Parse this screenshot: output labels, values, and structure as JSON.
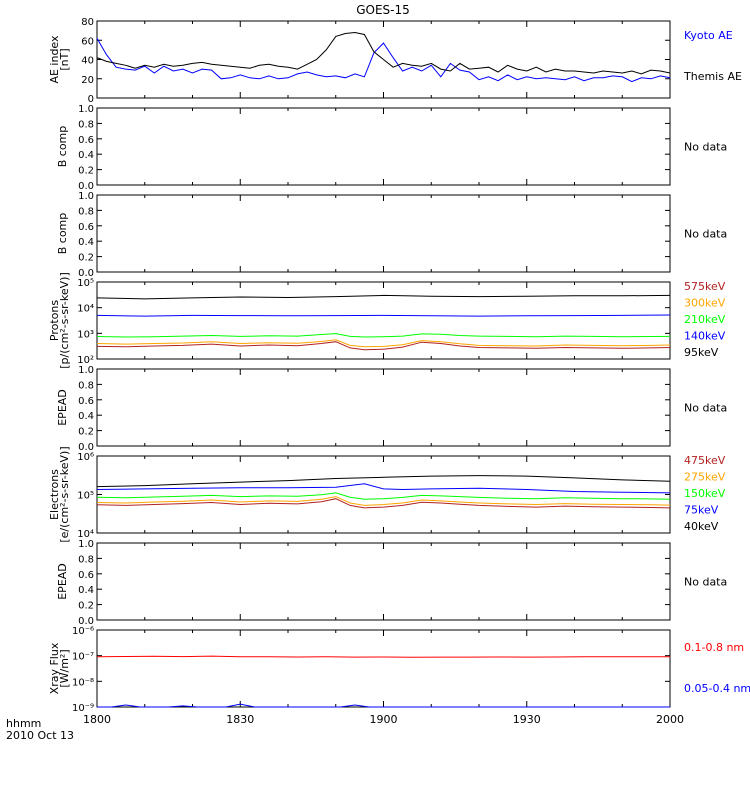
{
  "title": "GOES-15",
  "time_axis": {
    "ticks": [
      "1800",
      "1830",
      "1900",
      "1930",
      "2000"
    ],
    "corner_label_1": "hhmm",
    "corner_label_2": "2010 Oct 13"
  },
  "colors": {
    "black": "#000000",
    "blue": "#0000ff",
    "green": "#00ff00",
    "orange": "#ffa500",
    "darkred": "#b22222",
    "red": "#ff0000"
  },
  "chart_data": [
    {
      "type": "line",
      "panel": "ae",
      "ylabel": [
        "AE index",
        "[nT]"
      ],
      "ylim": [
        0,
        80
      ],
      "yticks": [
        "0",
        "20",
        "40",
        "60",
        "80"
      ],
      "x_range_minutes": [
        0,
        120
      ],
      "legend": [
        {
          "label": "Kyoto AE",
          "color": "#0000ff"
        },
        {
          "label": "Themis AE",
          "color": "#000000"
        }
      ],
      "series": [
        {
          "name": "Kyoto AE",
          "color": "#0000ff",
          "x": [
            0,
            2,
            4,
            6,
            8,
            10,
            12,
            14,
            16,
            18,
            20,
            22,
            24,
            26,
            28,
            30,
            32,
            34,
            36,
            38,
            40,
            42,
            44,
            46,
            48,
            50,
            52,
            54,
            56,
            58,
            60,
            62,
            64,
            66,
            68,
            70,
            72,
            74,
            76,
            78,
            80,
            82,
            84,
            86,
            88,
            90,
            92,
            94,
            96,
            98,
            100,
            102,
            104,
            106,
            108,
            110,
            112,
            114,
            116,
            118,
            120
          ],
          "y": [
            62,
            45,
            32,
            30,
            29,
            33,
            26,
            33,
            28,
            30,
            26,
            30,
            29,
            20,
            21,
            24,
            21,
            20,
            23,
            20,
            21,
            25,
            27,
            24,
            22,
            23,
            21,
            25,
            22,
            47,
            57,
            42,
            28,
            32,
            28,
            34,
            22,
            36,
            29,
            27,
            19,
            22,
            18,
            24,
            19,
            22,
            20,
            21,
            20,
            19,
            22,
            18,
            21,
            21,
            23,
            22,
            17,
            21,
            20,
            23,
            21
          ]
        },
        {
          "name": "Themis AE",
          "color": "#000000",
          "x": [
            0,
            2,
            4,
            6,
            8,
            10,
            12,
            14,
            16,
            18,
            20,
            22,
            24,
            26,
            28,
            30,
            32,
            34,
            36,
            38,
            40,
            42,
            44,
            46,
            48,
            50,
            52,
            54,
            56,
            58,
            60,
            62,
            64,
            66,
            68,
            70,
            72,
            74,
            76,
            78,
            80,
            82,
            84,
            86,
            88,
            90,
            92,
            94,
            96,
            98,
            100,
            102,
            104,
            106,
            108,
            110,
            112,
            114,
            116,
            118,
            120
          ],
          "y": [
            42,
            38,
            36,
            34,
            31,
            34,
            32,
            35,
            33,
            34,
            36,
            37,
            35,
            34,
            33,
            32,
            31,
            34,
            35,
            33,
            32,
            30,
            35,
            40,
            50,
            64,
            67,
            68,
            66,
            48,
            40,
            32,
            36,
            34,
            33,
            36,
            30,
            28,
            36,
            30,
            31,
            32,
            27,
            34,
            30,
            28,
            32,
            27,
            30,
            28,
            28,
            27,
            26,
            28,
            27,
            26,
            28,
            25,
            29,
            28,
            26
          ]
        }
      ]
    },
    {
      "type": "line",
      "panel": "bcomp1",
      "ylabel": [
        "B comp"
      ],
      "ylim": [
        0,
        1
      ],
      "yticks": [
        "0.0",
        "0.2",
        "0.4",
        "0.6",
        "0.8",
        "1.0"
      ],
      "status": "No data",
      "series": []
    },
    {
      "type": "line",
      "panel": "bcomp2",
      "ylabel": [
        "B comp"
      ],
      "ylim": [
        0,
        1
      ],
      "yticks": [
        "0.0",
        "0.2",
        "0.4",
        "0.6",
        "0.8",
        "1.0"
      ],
      "status": "No data",
      "series": []
    },
    {
      "type": "line",
      "panel": "protons",
      "ylabel": [
        "Protons",
        "[p/(cm²-s-sr-keV)]"
      ],
      "scale": "log",
      "ylim": [
        100,
        100000
      ],
      "yticks": [
        "10²",
        "10³",
        "10⁴",
        "10⁵"
      ],
      "x_range_minutes": [
        0,
        120
      ],
      "legend": [
        {
          "label": "575keV",
          "color": "#b22222"
        },
        {
          "label": "300keV",
          "color": "#ffa500"
        },
        {
          "label": "210keV",
          "color": "#00ff00"
        },
        {
          "label": "140keV",
          "color": "#0000ff"
        },
        {
          "label": "95keV",
          "color": "#000000"
        }
      ],
      "series": [
        {
          "name": "95keV",
          "color": "#000000",
          "x": [
            0,
            10,
            20,
            30,
            40,
            50,
            60,
            70,
            80,
            90,
            100,
            110,
            120
          ],
          "y": [
            24000,
            22000,
            24000,
            26000,
            25000,
            27000,
            30000,
            28000,
            27000,
            28000,
            29000,
            29000,
            30000
          ]
        },
        {
          "name": "140keV",
          "color": "#0000ff",
          "x": [
            0,
            10,
            20,
            30,
            40,
            50,
            60,
            70,
            80,
            90,
            100,
            110,
            120
          ],
          "y": [
            5000,
            4700,
            5000,
            4900,
            4800,
            4900,
            5000,
            4800,
            4700,
            4800,
            4900,
            5000,
            5200
          ]
        },
        {
          "name": "210keV",
          "color": "#00ff00",
          "x": [
            0,
            6,
            12,
            18,
            24,
            30,
            36,
            42,
            47,
            50,
            53,
            56,
            60,
            64,
            68,
            72,
            76,
            80,
            86,
            92,
            98,
            104,
            110,
            116,
            120
          ],
          "y": [
            750,
            720,
            740,
            780,
            820,
            760,
            800,
            780,
            900,
            980,
            760,
            720,
            740,
            780,
            950,
            920,
            820,
            780,
            760,
            740,
            780,
            760,
            740,
            750,
            760
          ]
        },
        {
          "name": "300keV",
          "color": "#ffa500",
          "x": [
            0,
            6,
            12,
            18,
            24,
            30,
            36,
            42,
            47,
            50,
            53,
            56,
            60,
            64,
            68,
            72,
            76,
            80,
            86,
            92,
            98,
            104,
            110,
            116,
            120
          ],
          "y": [
            400,
            380,
            400,
            420,
            470,
            400,
            430,
            410,
            480,
            560,
            340,
            300,
            310,
            360,
            520,
            470,
            390,
            340,
            330,
            320,
            350,
            340,
            330,
            340,
            350
          ]
        },
        {
          "name": "575keV",
          "color": "#b22222",
          "x": [
            0,
            6,
            12,
            18,
            24,
            30,
            36,
            42,
            47,
            50,
            53,
            56,
            60,
            64,
            68,
            72,
            76,
            80,
            86,
            92,
            98,
            104,
            110,
            116,
            120
          ],
          "y": [
            310,
            300,
            320,
            340,
            380,
            320,
            350,
            330,
            400,
            470,
            270,
            230,
            240,
            290,
            450,
            400,
            320,
            280,
            270,
            260,
            280,
            270,
            260,
            270,
            280
          ]
        }
      ]
    },
    {
      "type": "line",
      "panel": "epead1",
      "ylabel": [
        "EPEAD"
      ],
      "ylim": [
        0,
        1
      ],
      "yticks": [
        "0.0",
        "0.2",
        "0.4",
        "0.6",
        "0.8",
        "1.0"
      ],
      "status": "No data",
      "series": []
    },
    {
      "type": "line",
      "panel": "electrons",
      "ylabel": [
        "Electrons",
        "[e/(cm²-s-sr-keV)]"
      ],
      "scale": "log",
      "ylim": [
        10000,
        1000000
      ],
      "yticks": [
        "10⁴",
        "10⁵",
        "10⁶"
      ],
      "x_range_minutes": [
        0,
        120
      ],
      "legend": [
        {
          "label": "475keV",
          "color": "#b22222"
        },
        {
          "label": "275keV",
          "color": "#ffa500"
        },
        {
          "label": "150keV",
          "color": "#00ff00"
        },
        {
          "label": "75keV",
          "color": "#0000ff"
        },
        {
          "label": "40keV",
          "color": "#000000"
        }
      ],
      "series": [
        {
          "name": "40keV",
          "color": "#000000",
          "x": [
            0,
            10,
            20,
            30,
            40,
            50,
            60,
            70,
            80,
            90,
            100,
            110,
            120
          ],
          "y": [
            160000,
            170000,
            190000,
            210000,
            230000,
            260000,
            280000,
            300000,
            310000,
            300000,
            270000,
            240000,
            220000
          ]
        },
        {
          "name": "75keV",
          "color": "#0000ff",
          "x": [
            0,
            10,
            20,
            30,
            40,
            50,
            56,
            60,
            64,
            70,
            80,
            90,
            100,
            110,
            120
          ],
          "y": [
            135000,
            140000,
            145000,
            150000,
            150000,
            155000,
            190000,
            140000,
            135000,
            140000,
            145000,
            135000,
            120000,
            115000,
            110000
          ]
        },
        {
          "name": "150keV",
          "color": "#00ff00",
          "x": [
            0,
            6,
            12,
            18,
            24,
            30,
            36,
            42,
            47,
            50,
            53,
            56,
            60,
            64,
            68,
            72,
            76,
            80,
            86,
            92,
            98,
            104,
            110,
            116,
            120
          ],
          "y": [
            85000,
            82000,
            86000,
            90000,
            95000,
            88000,
            92000,
            90000,
            98000,
            110000,
            85000,
            75000,
            78000,
            84000,
            95000,
            92000,
            88000,
            84000,
            80000,
            78000,
            82000,
            80000,
            78000,
            77000,
            75000
          ]
        },
        {
          "name": "275keV",
          "color": "#ffa500",
          "x": [
            0,
            6,
            12,
            18,
            24,
            30,
            36,
            42,
            47,
            50,
            53,
            56,
            60,
            64,
            68,
            72,
            76,
            80,
            86,
            92,
            98,
            104,
            110,
            116,
            120
          ],
          "y": [
            62000,
            60000,
            64000,
            67000,
            72000,
            64000,
            68000,
            66000,
            75000,
            88000,
            60000,
            52000,
            55000,
            60000,
            72000,
            68000,
            64000,
            60000,
            57000,
            55000,
            58000,
            56000,
            55000,
            54000,
            53000
          ]
        },
        {
          "name": "475keV",
          "color": "#b22222",
          "x": [
            0,
            6,
            12,
            18,
            24,
            30,
            36,
            42,
            47,
            50,
            53,
            56,
            60,
            64,
            68,
            72,
            76,
            80,
            86,
            92,
            98,
            104,
            110,
            116,
            120
          ],
          "y": [
            54000,
            52000,
            55000,
            58000,
            62000,
            55000,
            59000,
            57000,
            65000,
            78000,
            52000,
            45000,
            47000,
            52000,
            63000,
            60000,
            56000,
            52000,
            49000,
            47000,
            50000,
            48000,
            47000,
            46000,
            45000
          ]
        }
      ]
    },
    {
      "type": "line",
      "panel": "epead2",
      "ylabel": [
        "EPEAD"
      ],
      "ylim": [
        0,
        1
      ],
      "yticks": [
        "0.0",
        "0.2",
        "0.4",
        "0.6",
        "0.8",
        "1.0"
      ],
      "status": "No data",
      "series": []
    },
    {
      "type": "line",
      "panel": "xray",
      "ylabel": [
        "Xray Flux",
        "[W/m²]"
      ],
      "scale": "log",
      "ylim": [
        1e-09,
        1e-06
      ],
      "yticks": [
        "10⁻⁹",
        "10⁻⁸",
        "10⁻⁷",
        "10⁻⁶"
      ],
      "x_range_minutes": [
        0,
        120
      ],
      "legend": [
        {
          "label": "0.1-0.8 nm",
          "color": "#ff0000"
        },
        {
          "label": "0.05-0.4 nm",
          "color": "#0000ff"
        }
      ],
      "series": [
        {
          "name": "0.1-0.8 nm",
          "color": "#ff0000",
          "x": [
            0,
            6,
            12,
            18,
            24,
            30,
            36,
            42,
            48,
            54,
            60,
            66,
            72,
            78,
            84,
            90,
            96,
            102,
            108,
            114,
            120
          ],
          "y": [
            9e-08,
            9.3e-08,
            9.5e-08,
            9.2e-08,
            9.6e-08,
            9.1e-08,
            9e-08,
            8.9e-08,
            9e-08,
            8.8e-08,
            8.9e-08,
            8.7e-08,
            8.8e-08,
            8.8e-08,
            8.9e-08,
            8.8e-08,
            8.9e-08,
            9e-08,
            9e-08,
            9e-08,
            9.1e-08
          ]
        },
        {
          "name": "0.05-0.4 nm",
          "color": "#0000ff",
          "x": [
            0,
            3,
            6,
            9,
            12,
            15,
            18,
            21,
            24,
            27,
            30,
            33,
            36,
            39,
            42,
            45,
            48,
            51,
            54,
            57,
            60,
            63,
            66,
            69,
            72,
            75,
            78,
            81,
            84,
            87,
            90,
            93,
            96,
            99,
            102,
            105,
            108,
            111,
            114,
            117,
            120
          ],
          "y": [
            1e-09,
            1e-09,
            1.2e-09,
            1e-09,
            1e-09,
            1e-09,
            1.1e-09,
            1e-09,
            1e-09,
            1e-09,
            1.3e-09,
            1e-09,
            1e-09,
            1e-09,
            1e-09,
            1e-09,
            1e-09,
            1e-09,
            1.2e-09,
            1e-09,
            1e-09,
            1e-09,
            1e-09,
            1e-09,
            1e-09,
            1e-09,
            1e-09,
            1e-09,
            1e-09,
            1e-09,
            1e-09,
            1e-09,
            1e-09,
            1e-09,
            1e-09,
            1e-09,
            1e-09,
            1e-09,
            1e-09,
            1e-09,
            1e-09
          ]
        }
      ]
    }
  ]
}
